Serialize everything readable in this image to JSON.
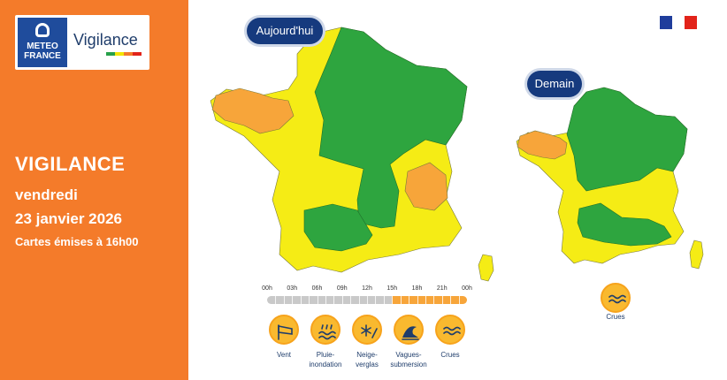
{
  "brand": {
    "logo_line1": "METEO",
    "logo_line2": "FRANCE",
    "product": "Vigilance",
    "bar_colors": [
      "#27a04a",
      "#f2e500",
      "#f47b2a",
      "#e2231a"
    ]
  },
  "side": {
    "title": "VIGILANCE",
    "day": "vendredi",
    "date": "23 janvier 2026",
    "issued": "Cartes émises à 16h00"
  },
  "maps": {
    "today": {
      "label": "Aujourd'hui"
    },
    "tomorrow": {
      "label": "Demain"
    }
  },
  "flag_colors": [
    "#1f3d9c",
    "#ffffff",
    "#e2231a"
  ],
  "colors": {
    "green": "#2ea53f",
    "yellow": "#f5ec15",
    "orange": "#f7a53a",
    "border": "#7a7a3a",
    "timeline_grey": "#c9c9c9",
    "timeline_orange": "#f7a53a"
  },
  "timeline": {
    "labels": [
      "00h",
      "03h",
      "06h",
      "09h",
      "12h",
      "15h",
      "18h",
      "21h",
      "00h"
    ],
    "orange_from_hour": 15
  },
  "phenomena": [
    {
      "id": "vent",
      "icon": "wind-icon",
      "label1": "Vent",
      "label2": ""
    },
    {
      "id": "pluie",
      "icon": "rain-flood-icon",
      "label1": "Pluie-",
      "label2": "inondation"
    },
    {
      "id": "neige",
      "icon": "snow-ice-icon",
      "label1": "Neige-",
      "label2": "verglas"
    },
    {
      "id": "vagues",
      "icon": "waves-submersion-icon",
      "label1": "Vagues-",
      "label2": "submersion"
    },
    {
      "id": "crues",
      "icon": "flood-icon",
      "label1": "Crues",
      "label2": ""
    }
  ],
  "tomorrow_phenomena": [
    {
      "id": "crues",
      "icon": "flood-icon",
      "label1": "Crues"
    }
  ]
}
